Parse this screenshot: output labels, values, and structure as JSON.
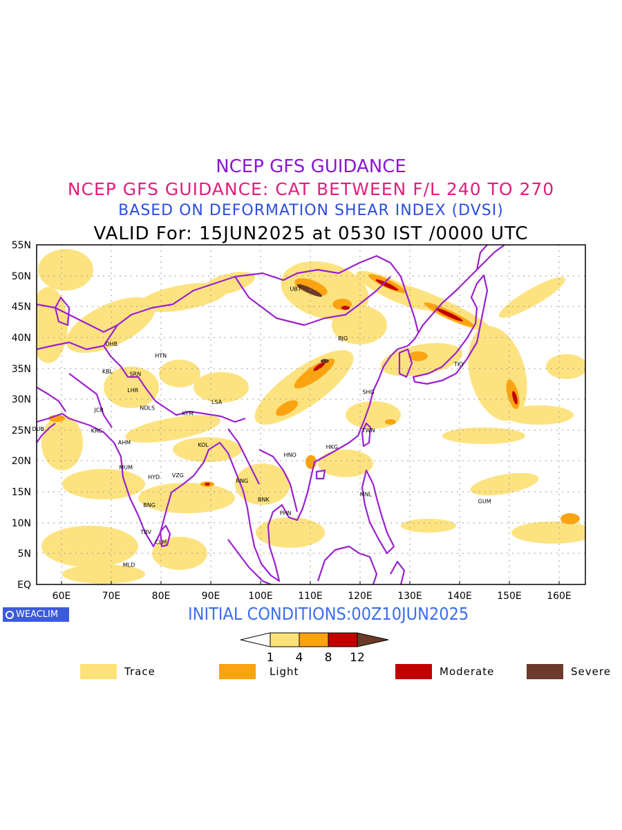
{
  "titles": {
    "line1": "NCEP GFS GUIDANCE",
    "line2": "NCEP GFS GUIDANCE: CAT BETWEEN F/L 240 TO 270",
    "line3": "BASED ON DEFORMATION SHEAR INDEX (DVSI)",
    "line4": "VALID For: 15JUN2025 at 0530 IST /0000 UTC"
  },
  "map": {
    "lon_range": [
      55,
      165
    ],
    "lat_range": [
      0,
      55
    ],
    "lat_labels": [
      "55N",
      "50N",
      "45N",
      "40N",
      "35N",
      "30N",
      "25N",
      "20N",
      "15N",
      "10N",
      "5N",
      "EQ"
    ],
    "lon_labels": [
      "60E",
      "70E",
      "80E",
      "90E",
      "100E",
      "110E",
      "120E",
      "130E",
      "140E",
      "150E",
      "160E"
    ],
    "colors": {
      "trace": "#fde27a",
      "light": "#fca311",
      "moderate": "#c10000",
      "severe": "#6b3a2a",
      "borders": "#9b1fd0",
      "grid": "#999999"
    },
    "stations": [
      {
        "code": "DHB",
        "lon": 70,
        "lat": 39
      },
      {
        "code": "KBL",
        "lon": 69.2,
        "lat": 34.5
      },
      {
        "code": "SRN",
        "lon": 74.8,
        "lat": 34.1
      },
      {
        "code": "HTN",
        "lon": 79.9,
        "lat": 37.1
      },
      {
        "code": "LHR",
        "lon": 74.3,
        "lat": 31.5
      },
      {
        "code": "JCB",
        "lon": 67.5,
        "lat": 28.3
      },
      {
        "code": "NDLS",
        "lon": 77.2,
        "lat": 28.6
      },
      {
        "code": "KTM",
        "lon": 85.3,
        "lat": 27.7
      },
      {
        "code": "LSA",
        "lon": 91.1,
        "lat": 29.6
      },
      {
        "code": "DUB",
        "lon": 55.3,
        "lat": 25.2
      },
      {
        "code": "KRC",
        "lon": 67,
        "lat": 24.9
      },
      {
        "code": "AHM",
        "lon": 72.6,
        "lat": 23
      },
      {
        "code": "KOL",
        "lon": 88.4,
        "lat": 22.6
      },
      {
        "code": "MUM",
        "lon": 72.9,
        "lat": 19
      },
      {
        "code": "HYD",
        "lon": 78.5,
        "lat": 17.4
      },
      {
        "code": "VZG",
        "lon": 83.3,
        "lat": 17.7
      },
      {
        "code": "RNG",
        "lon": 96.2,
        "lat": 16.8
      },
      {
        "code": "BNG",
        "lon": 77.6,
        "lat": 12.9
      },
      {
        "code": "TRV",
        "lon": 76.9,
        "lat": 8.5
      },
      {
        "code": "CLM",
        "lon": 79.9,
        "lat": 6.9
      },
      {
        "code": "MLD",
        "lon": 73.5,
        "lat": 3.2
      },
      {
        "code": "BNK",
        "lon": 100.5,
        "lat": 13.8
      },
      {
        "code": "PHN",
        "lon": 104.9,
        "lat": 11.6
      },
      {
        "code": "HNO",
        "lon": 105.8,
        "lat": 21
      },
      {
        "code": "HKG",
        "lon": 114.2,
        "lat": 22.3
      },
      {
        "code": "TWN",
        "lon": 121.5,
        "lat": 25
      },
      {
        "code": "SHG",
        "lon": 121.5,
        "lat": 31.2
      },
      {
        "code": "BJG",
        "lon": 116.4,
        "lat": 39.9
      },
      {
        "code": "UBT",
        "lon": 106.9,
        "lat": 47.9
      },
      {
        "code": "TKY",
        "lon": 139.7,
        "lat": 35.7
      },
      {
        "code": "MNL",
        "lon": 121,
        "lat": 14.6
      },
      {
        "code": "GUM",
        "lon": 144.8,
        "lat": 13.5
      }
    ]
  },
  "footer": {
    "badge": "WEACLIM",
    "initial_conditions": "INITIAL CONDITIONS:00Z10JUN2025"
  },
  "colorbar": {
    "ticks": [
      "1",
      "4",
      "8",
      "12"
    ]
  },
  "legend": [
    {
      "label": "Trace",
      "color": "#fde27a"
    },
    {
      "label": "Light",
      "color": "#fca311"
    },
    {
      "label": "Moderate",
      "color": "#c10000"
    },
    {
      "label": "Severe",
      "color": "#6b3a2a"
    }
  ]
}
